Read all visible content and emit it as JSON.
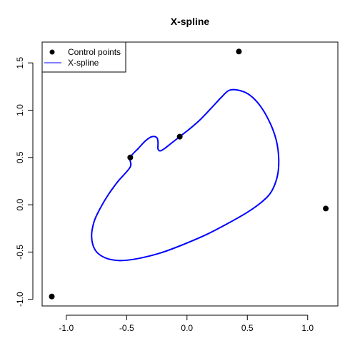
{
  "chart_data": {
    "type": "scatter",
    "title": "X-spline",
    "xlabel": "",
    "ylabel": "",
    "xlim": [
      -1.2,
      1.25
    ],
    "ylim": [
      -1.07,
      1.72
    ],
    "x_ticks": [
      -1.0,
      -0.5,
      0.0,
      0.5,
      1.0
    ],
    "x_tick_labels": [
      "-1.0",
      "-0.5",
      "0.0",
      "0.5",
      "1.0"
    ],
    "y_ticks": [
      -1.0,
      -0.5,
      0.0,
      0.5,
      1.0,
      1.5
    ],
    "y_tick_labels": [
      "-1.0",
      "-0.5",
      "0.0",
      "0.5",
      "1.0",
      "1.5"
    ],
    "grid": false,
    "legend_position": "top-left",
    "legend": [
      {
        "label": "Control points",
        "marker": "point",
        "color": "#000000"
      },
      {
        "label": "X-spline",
        "marker": "line",
        "color": "#0000ff"
      }
    ],
    "series": [
      {
        "name": "Control points",
        "kind": "points",
        "color": "#000000",
        "x": [
          -1.12,
          -0.47,
          -0.06,
          0.43,
          1.15
        ],
        "y": [
          -0.97,
          0.5,
          0.72,
          1.62,
          -0.04
        ]
      },
      {
        "name": "X-spline",
        "kind": "closed-curve",
        "color": "#0000ff",
        "x": [
          -0.47,
          -0.4,
          -0.34,
          -0.29,
          -0.25,
          -0.24,
          -0.24,
          -0.22,
          -0.18,
          -0.13,
          -0.06,
          0.02,
          0.11,
          0.2,
          0.28,
          0.35,
          0.43,
          0.52,
          0.61,
          0.69,
          0.74,
          0.76,
          0.75,
          0.7,
          0.62,
          0.5,
          0.35,
          0.17,
          -0.03,
          -0.22,
          -0.41,
          -0.56,
          -0.68,
          -0.76,
          -0.79,
          -0.77,
          -0.72,
          -0.65,
          -0.57,
          -0.47
        ],
        "y": [
          0.5,
          0.6,
          0.68,
          0.72,
          0.71,
          0.66,
          0.59,
          0.57,
          0.6,
          0.65,
          0.72,
          0.8,
          0.9,
          1.02,
          1.13,
          1.21,
          1.21,
          1.16,
          1.04,
          0.86,
          0.68,
          0.49,
          0.31,
          0.14,
          0.03,
          -0.08,
          -0.19,
          -0.31,
          -0.42,
          -0.51,
          -0.57,
          -0.59,
          -0.56,
          -0.48,
          -0.34,
          -0.18,
          -0.04,
          0.11,
          0.25,
          0.4
        ]
      }
    ]
  }
}
